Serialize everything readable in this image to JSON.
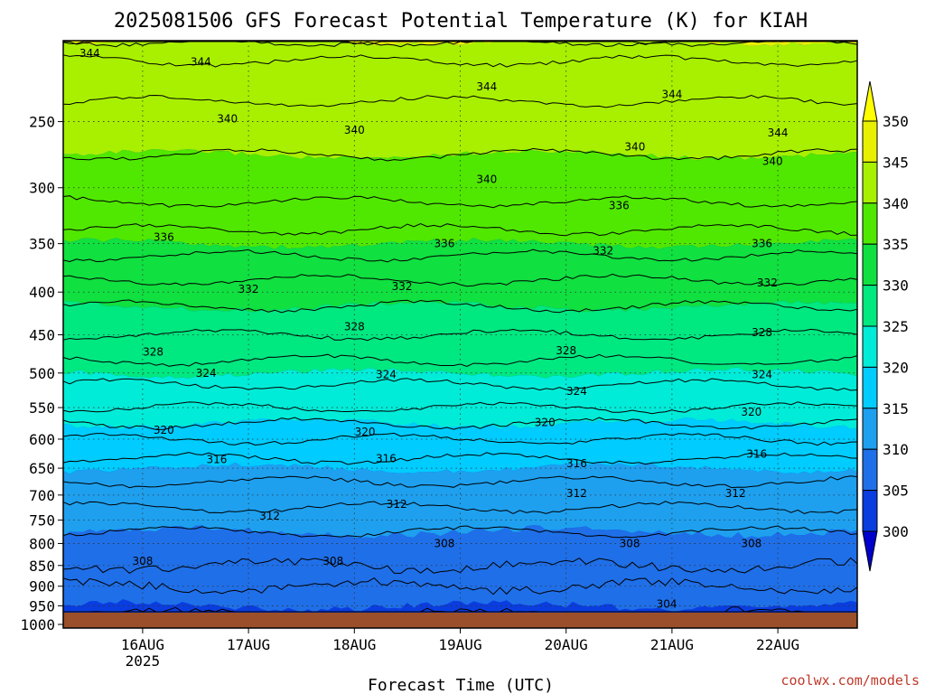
{
  "chart_data": {
    "type": "heatmap",
    "title": "2025081506 GFS Forecast Potential Temperature (K) for KIAH",
    "xlabel": "Forecast Time (UTC)",
    "ylabel": "",
    "credit": "coolwx.com/models",
    "x_ticks": [
      {
        "label": "16AUG",
        "sub": "2025",
        "day": 16
      },
      {
        "label": "17AUG",
        "sub": "",
        "day": 17
      },
      {
        "label": "18AUG",
        "sub": "",
        "day": 18
      },
      {
        "label": "19AUG",
        "sub": "",
        "day": 19
      },
      {
        "label": "20AUG",
        "sub": "",
        "day": 20
      },
      {
        "label": "21AUG",
        "sub": "",
        "day": 21
      },
      {
        "label": "22AUG",
        "sub": "",
        "day": 22
      }
    ],
    "x_range": [
      "2025-08-15 06Z",
      "2025-08-22 18Z"
    ],
    "y_ticks": [
      250,
      300,
      350,
      400,
      450,
      500,
      550,
      600,
      650,
      700,
      750,
      800,
      850,
      900,
      950,
      1000
    ],
    "y_range": [
      200,
      1010
    ],
    "y_scale": "log pressure (hPa), inverted",
    "grid": true,
    "colorbar": {
      "levels": [
        300,
        305,
        310,
        315,
        320,
        325,
        330,
        335,
        340,
        345,
        350
      ],
      "colors": [
        "#0000cc",
        "#0a3de0",
        "#1f6fe8",
        "#1ea0ef",
        "#00ccff",
        "#00ecd8",
        "#00e880",
        "#10e040",
        "#50e800",
        "#a8f000",
        "#e8f000",
        "#ffff00"
      ],
      "extend": "both"
    },
    "profile_theta_vs_pressure": [
      {
        "p": 1000,
        "theta": 303
      },
      {
        "p": 950,
        "theta": 305
      },
      {
        "p": 900,
        "theta": 306
      },
      {
        "p": 850,
        "theta": 308
      },
      {
        "p": 800,
        "theta": 309
      },
      {
        "p": 750,
        "theta": 311
      },
      {
        "p": 700,
        "theta": 313
      },
      {
        "p": 650,
        "theta": 315
      },
      {
        "p": 600,
        "theta": 318
      },
      {
        "p": 550,
        "theta": 322
      },
      {
        "p": 500,
        "theta": 325
      },
      {
        "p": 450,
        "theta": 328
      },
      {
        "p": 400,
        "theta": 331
      },
      {
        "p": 350,
        "theta": 335
      },
      {
        "p": 300,
        "theta": 339
      },
      {
        "p": 250,
        "theta": 341
      },
      {
        "p": 200,
        "theta": 345
      }
    ],
    "contour_labels": [
      {
        "text": "344",
        "day": 15.5,
        "p": 207
      },
      {
        "text": "344",
        "day": 16.55,
        "p": 212
      },
      {
        "text": "344",
        "day": 19.25,
        "p": 227
      },
      {
        "text": "344",
        "day": 21.0,
        "p": 232
      },
      {
        "text": "344",
        "day": 22.0,
        "p": 258
      },
      {
        "text": "340",
        "day": 16.8,
        "p": 248
      },
      {
        "text": "340",
        "day": 18.0,
        "p": 256
      },
      {
        "text": "340",
        "day": 19.25,
        "p": 293
      },
      {
        "text": "340",
        "day": 20.65,
        "p": 268
      },
      {
        "text": "340",
        "day": 21.95,
        "p": 279
      },
      {
        "text": "336",
        "day": 16.2,
        "p": 344
      },
      {
        "text": "336",
        "day": 18.85,
        "p": 350
      },
      {
        "text": "336",
        "day": 20.5,
        "p": 315
      },
      {
        "text": "336",
        "day": 21.85,
        "p": 350
      },
      {
        "text": "332",
        "day": 17.0,
        "p": 397
      },
      {
        "text": "332",
        "day": 18.45,
        "p": 394
      },
      {
        "text": "332",
        "day": 20.35,
        "p": 357
      },
      {
        "text": "332",
        "day": 21.9,
        "p": 390
      },
      {
        "text": "328",
        "day": 16.1,
        "p": 472
      },
      {
        "text": "328",
        "day": 18.0,
        "p": 440
      },
      {
        "text": "328",
        "day": 20.0,
        "p": 470
      },
      {
        "text": "328",
        "day": 21.85,
        "p": 447
      },
      {
        "text": "324",
        "day": 16.6,
        "p": 500
      },
      {
        "text": "324",
        "day": 18.3,
        "p": 502
      },
      {
        "text": "324",
        "day": 20.1,
        "p": 526
      },
      {
        "text": "324",
        "day": 21.85,
        "p": 502
      },
      {
        "text": "320",
        "day": 16.2,
        "p": 585
      },
      {
        "text": "320",
        "day": 18.1,
        "p": 588
      },
      {
        "text": "320",
        "day": 19.8,
        "p": 573
      },
      {
        "text": "320",
        "day": 21.75,
        "p": 557
      },
      {
        "text": "316",
        "day": 16.7,
        "p": 635
      },
      {
        "text": "316",
        "day": 18.3,
        "p": 633
      },
      {
        "text": "316",
        "day": 20.1,
        "p": 642
      },
      {
        "text": "316",
        "day": 21.8,
        "p": 625
      },
      {
        "text": "312",
        "day": 17.2,
        "p": 742
      },
      {
        "text": "312",
        "day": 18.4,
        "p": 718
      },
      {
        "text": "312",
        "day": 20.1,
        "p": 697
      },
      {
        "text": "312",
        "day": 21.6,
        "p": 697
      },
      {
        "text": "308",
        "day": 16.0,
        "p": 840
      },
      {
        "text": "308",
        "day": 17.8,
        "p": 840
      },
      {
        "text": "308",
        "day": 18.85,
        "p": 800
      },
      {
        "text": "308",
        "day": 20.6,
        "p": 800
      },
      {
        "text": "308",
        "day": 21.75,
        "p": 800
      },
      {
        "text": "304",
        "day": 20.95,
        "p": 945
      }
    ]
  }
}
